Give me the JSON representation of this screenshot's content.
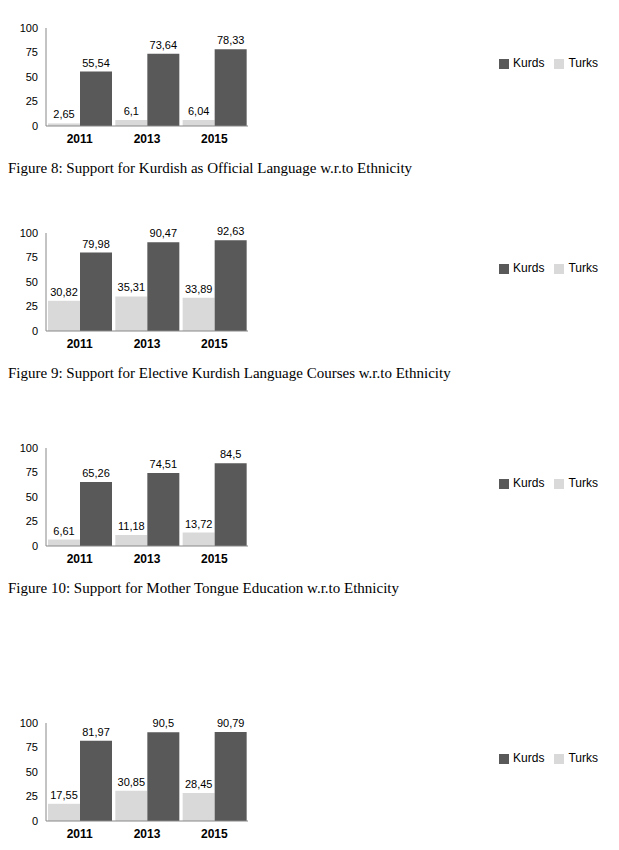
{
  "chart_data": [
    {
      "type": "bar",
      "title": "Figure 8: Support for Kurdish as Official Language w.r.to Ethnicity",
      "categories": [
        "2011",
        "2013",
        "2015"
      ],
      "series": [
        {
          "name": "Turks",
          "color": "#d9d9d9",
          "values": [
            2.65,
            6.1,
            6.04
          ],
          "value_labels": [
            "2,65",
            "6,1",
            "6,04"
          ]
        },
        {
          "name": "Kurds",
          "color": "#595959",
          "values": [
            55.54,
            73.64,
            78.33
          ],
          "value_labels": [
            "55,54",
            "73,64",
            "78,33"
          ]
        }
      ],
      "ylim": [
        0,
        100
      ],
      "yticks": [
        0,
        25,
        50,
        75,
        100
      ],
      "grid": false,
      "legend": "right",
      "data_labels": true
    },
    {
      "type": "bar",
      "title": "Figure 9: Support for Elective Kurdish Language Courses w.r.to Ethnicity",
      "categories": [
        "2011",
        "2013",
        "2015"
      ],
      "series": [
        {
          "name": "Turks",
          "color": "#d9d9d9",
          "values": [
            30.82,
            35.31,
            33.89
          ],
          "value_labels": [
            "30,82",
            "35,31",
            "33,89"
          ]
        },
        {
          "name": "Kurds",
          "color": "#595959",
          "values": [
            79.98,
            90.47,
            92.63
          ],
          "value_labels": [
            "79,98",
            "90,47",
            "92,63"
          ]
        }
      ],
      "ylim": [
        0,
        100
      ],
      "yticks": [
        0,
        25,
        50,
        75,
        100
      ],
      "grid": false,
      "legend": "right",
      "data_labels": true
    },
    {
      "type": "bar",
      "title": "Figure 10: Support for Mother Tongue Education w.r.to Ethnicity",
      "categories": [
        "2011",
        "2013",
        "2015"
      ],
      "series": [
        {
          "name": "Turks",
          "color": "#d9d9d9",
          "values": [
            6.61,
            11.18,
            13.72
          ],
          "value_labels": [
            "6,61",
            "11,18",
            "13,72"
          ]
        },
        {
          "name": "Kurds",
          "color": "#595959",
          "values": [
            65.26,
            74.51,
            84.5
          ],
          "value_labels": [
            "65,26",
            "74,51",
            "84,5"
          ]
        }
      ],
      "ylim": [
        0,
        100
      ],
      "yticks": [
        0,
        25,
        50,
        75,
        100
      ],
      "grid": false,
      "legend": "right",
      "data_labels": true
    },
    {
      "type": "bar",
      "categories": [
        "2011",
        "2013",
        "2015"
      ],
      "series": [
        {
          "name": "Turks",
          "color": "#d9d9d9",
          "values": [
            17.55,
            30.85,
            28.45
          ],
          "value_labels": [
            "17,55",
            "30,85",
            "28,45"
          ]
        },
        {
          "name": "Kurds",
          "color": "#595959",
          "values": [
            81.97,
            90.5,
            90.79
          ],
          "value_labels": [
            "81,97",
            "90,5",
            "90,79"
          ]
        }
      ],
      "ylim": [
        0,
        100
      ],
      "yticks": [
        0,
        25,
        50,
        75,
        100
      ],
      "grid": false,
      "legend": "right",
      "data_labels": true
    }
  ]
}
